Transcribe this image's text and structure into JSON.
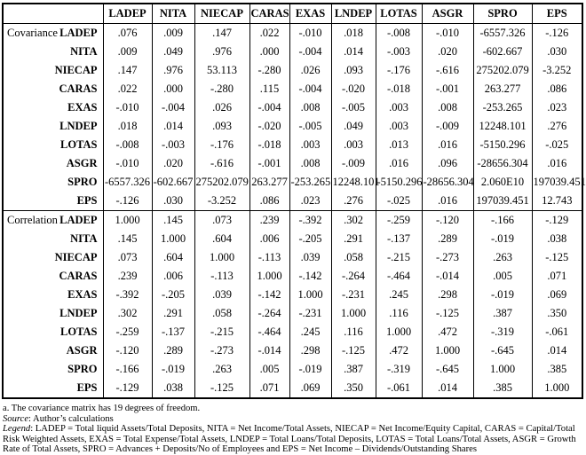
{
  "table": {
    "column_headers": [
      "LADEP",
      "NITA",
      "NIECAP",
      "CARAS",
      "EXAS",
      "LNDEP",
      "LOTAS",
      "ASGR",
      "SPRO",
      "EPS"
    ],
    "sections": [
      {
        "label": "Covariance",
        "rows": [
          {
            "label": "LADEP",
            "values": [
              ".076",
              ".009",
              ".147",
              ".022",
              "-.010",
              ".018",
              "-.008",
              "-.010",
              "-6557.326",
              "-.126"
            ]
          },
          {
            "label": "NITA",
            "values": [
              ".009",
              ".049",
              ".976",
              ".000",
              "-.004",
              ".014",
              "-.003",
              ".020",
              "-602.667",
              ".030"
            ]
          },
          {
            "label": "NIECAP",
            "values": [
              ".147",
              ".976",
              "53.113",
              "-.280",
              ".026",
              ".093",
              "-.176",
              "-.616",
              "275202.079",
              "-3.252"
            ]
          },
          {
            "label": "CARAS",
            "values": [
              ".022",
              ".000",
              "-.280",
              ".115",
              "-.004",
              "-.020",
              "-.018",
              "-.001",
              "263.277",
              ".086"
            ]
          },
          {
            "label": "EXAS",
            "values": [
              "-.010",
              "-.004",
              ".026",
              "-.004",
              ".008",
              "-.005",
              ".003",
              ".008",
              "-253.265",
              ".023"
            ]
          },
          {
            "label": "LNDEP",
            "values": [
              ".018",
              ".014",
              ".093",
              "-.020",
              "-.005",
              ".049",
              ".003",
              "-.009",
              "12248.101",
              ".276"
            ]
          },
          {
            "label": "LOTAS",
            "values": [
              "-.008",
              "-.003",
              "-.176",
              "-.018",
              ".003",
              ".003",
              ".013",
              ".016",
              "-5150.296",
              "-.025"
            ]
          },
          {
            "label": "ASGR",
            "values": [
              "-.010",
              ".020",
              "-.616",
              "-.001",
              ".008",
              "-.009",
              ".016",
              ".096",
              "-28656.304",
              ".016"
            ]
          },
          {
            "label": "SPRO",
            "values": [
              "-6557.326",
              "-602.667",
              "275202.079",
              "263.277",
              "-253.265",
              "12248.101",
              "-5150.296",
              "-28656.304",
              "2.060E10",
              "197039.451"
            ]
          },
          {
            "label": "EPS",
            "values": [
              "-.126",
              ".030",
              "-3.252",
              ".086",
              ".023",
              ".276",
              "-.025",
              ".016",
              "197039.451",
              "12.743"
            ]
          }
        ]
      },
      {
        "label": "Correlation",
        "rows": [
          {
            "label": "LADEP",
            "values": [
              "1.000",
              ".145",
              ".073",
              ".239",
              "-.392",
              ".302",
              "-.259",
              "-.120",
              "-.166",
              "-.129"
            ]
          },
          {
            "label": "NITA",
            "values": [
              ".145",
              "1.000",
              ".604",
              ".006",
              "-.205",
              ".291",
              "-.137",
              ".289",
              "-.019",
              ".038"
            ]
          },
          {
            "label": "NIECAP",
            "values": [
              ".073",
              ".604",
              "1.000",
              "-.113",
              ".039",
              ".058",
              "-.215",
              "-.273",
              ".263",
              "-.125"
            ]
          },
          {
            "label": "CARAS",
            "values": [
              ".239",
              ".006",
              "-.113",
              "1.000",
              "-.142",
              "-.264",
              "-.464",
              "-.014",
              ".005",
              ".071"
            ]
          },
          {
            "label": "EXAS",
            "values": [
              "-.392",
              "-.205",
              ".039",
              "-.142",
              "1.000",
              "-.231",
              ".245",
              ".298",
              "-.019",
              ".069"
            ]
          },
          {
            "label": "LNDEP",
            "values": [
              ".302",
              ".291",
              ".058",
              "-.264",
              "-.231",
              "1.000",
              ".116",
              "-.125",
              ".387",
              ".350"
            ]
          },
          {
            "label": "LOTAS",
            "values": [
              "-.259",
              "-.137",
              "-.215",
              "-.464",
              ".245",
              ".116",
              "1.000",
              ".472",
              "-.319",
              "-.061"
            ]
          },
          {
            "label": "ASGR",
            "values": [
              "-.120",
              ".289",
              "-.273",
              "-.014",
              ".298",
              "-.125",
              ".472",
              "1.000",
              "-.645",
              ".014"
            ]
          },
          {
            "label": "SPRO",
            "values": [
              "-.166",
              "-.019",
              ".263",
              ".005",
              "-.019",
              ".387",
              "-.319",
              "-.645",
              "1.000",
              ".385"
            ]
          },
          {
            "label": "EPS",
            "values": [
              "-.129",
              ".038",
              "-.125",
              ".071",
              ".069",
              ".350",
              "-.061",
              ".014",
              ".385",
              "1.000"
            ]
          }
        ]
      }
    ]
  },
  "footnotes": {
    "note_a": "a. The covariance matrix has 19 degrees of freedom.",
    "source_label": "Source",
    "source_text": ": Author’s calculations",
    "legend_label": "Legend",
    "legend_text": ": LADEP = Total liquid Assets/Total Deposits, NITA = Net Income/Total Assets, NIECAP = Net Income/Equity Capital, CARAS = Capital/Total Risk Weighted Assets, EXAS = Total Expense/Total Assets, LNDEP = Total Loans/Total Deposits, LOTAS = Total Loans/Total Assets, ASGR = Growth Rate of Total Assets, SPRO = Advances + Deposits/No of Employees and EPS = Net Income – Dividends/Outstanding Shares"
  }
}
